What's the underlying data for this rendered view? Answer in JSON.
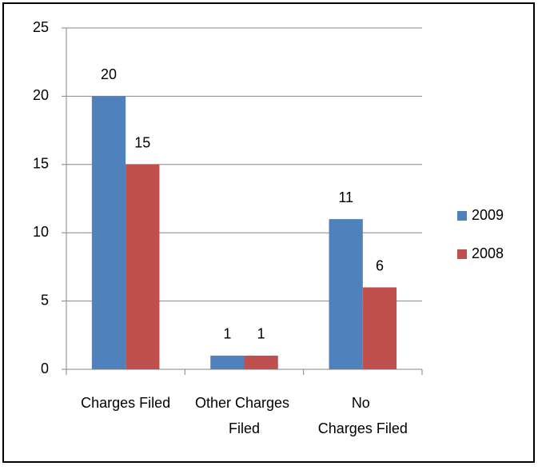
{
  "chart_data": {
    "type": "bar",
    "categories": [
      "Charges Filed",
      "Other Charges Filed",
      "No Charges Filed"
    ],
    "series": [
      {
        "name": "2009",
        "color": "#4f81bd",
        "values": [
          20,
          1,
          11
        ]
      },
      {
        "name": "2008",
        "color": "#c0504d",
        "values": [
          15,
          1,
          6
        ]
      }
    ],
    "ylim": [
      0,
      25
    ],
    "yticks": [
      0,
      5,
      10,
      15,
      20,
      25
    ],
    "grid": true,
    "legend": "right"
  }
}
